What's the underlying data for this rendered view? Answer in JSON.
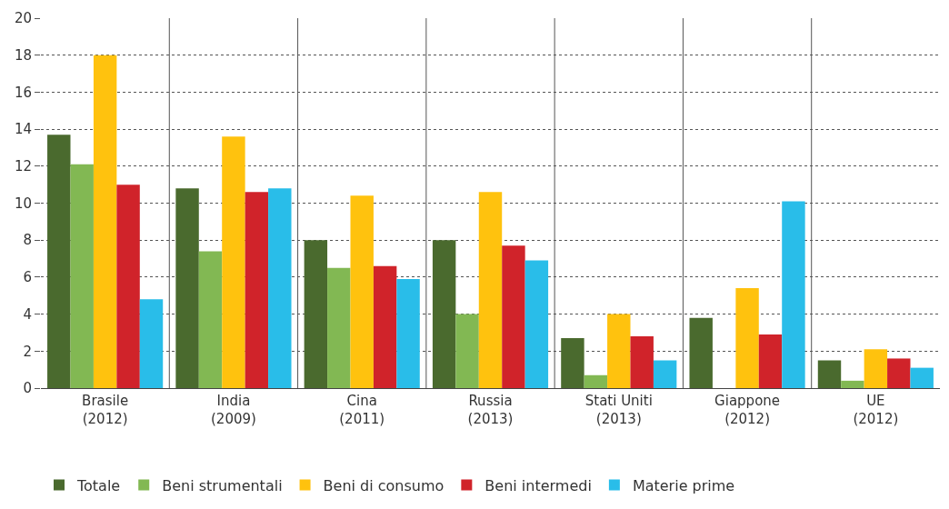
{
  "chart_data": {
    "type": "bar",
    "categories": [
      "Brasile\n(2012)",
      "India\n(2009)",
      "Cina\n(2011)",
      "Russia\n(2013)",
      "Stati Uniti\n(2013)",
      "Giappone\n(2012)",
      "UE\n(2012)"
    ],
    "series": [
      {
        "name": "Totale",
        "color": "#4a6a2e",
        "values": [
          13.7,
          10.8,
          8.0,
          8.0,
          2.7,
          3.8,
          1.5
        ]
      },
      {
        "name": "Beni strumentali",
        "color": "#82b853",
        "values": [
          12.1,
          7.4,
          6.5,
          4.0,
          0.7,
          0,
          0.4
        ]
      },
      {
        "name": "Beni di consumo",
        "color": "#ffc20e",
        "values": [
          18.0,
          13.6,
          10.4,
          10.6,
          4.0,
          5.4,
          2.1
        ]
      },
      {
        "name": "Beni intermedi",
        "color": "#d0232a",
        "values": [
          11.0,
          10.6,
          6.6,
          7.7,
          2.8,
          2.9,
          1.6
        ]
      },
      {
        "name": "Materie prime",
        "color": "#29bde9",
        "values": [
          4.8,
          10.8,
          5.9,
          6.9,
          1.5,
          10.1,
          1.1
        ]
      }
    ],
    "ylim": [
      0,
      20
    ],
    "yticks": [
      0,
      2,
      4,
      6,
      8,
      10,
      12,
      14,
      16,
      18,
      20
    ],
    "grid": true,
    "legend": "bottom left"
  }
}
